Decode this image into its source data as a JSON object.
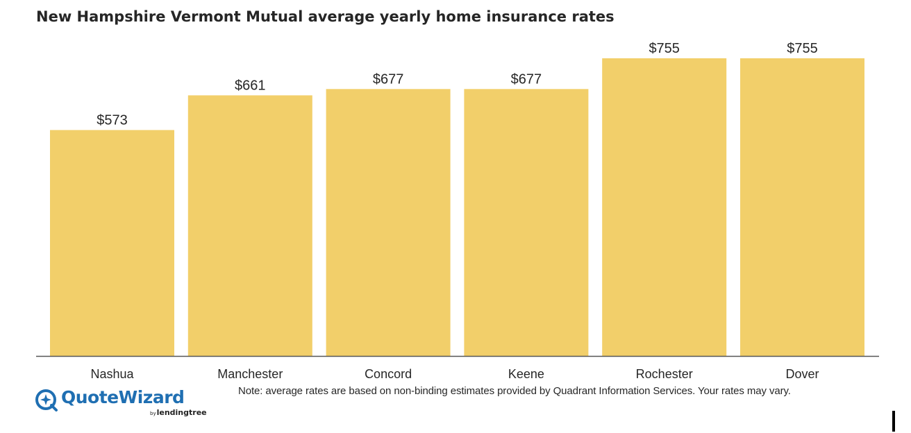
{
  "chart_data": {
    "type": "bar",
    "title": "New Hampshire Vermont Mutual average yearly home insurance rates",
    "categories": [
      "Nashua",
      "Manchester",
      "Concord",
      "Keene",
      "Rochester",
      "Dover"
    ],
    "values": [
      573,
      661,
      677,
      677,
      755,
      755
    ],
    "value_labels": [
      "$573",
      "$661",
      "$677",
      "$677",
      "$755",
      "$755"
    ],
    "xlabel": "",
    "ylabel": "",
    "ylim": [
      0,
      755
    ],
    "grid": false,
    "legend": "none",
    "bar_color": "#f2cf6a",
    "axis_color": "#555555"
  },
  "footnote": "Note: average rates are based on non-binding estimates provided by Quadrant Information Services. Your rates may vary.",
  "brand": {
    "name": "QuoteWizard",
    "by": "by",
    "partner": "lendingtree",
    "primary_color": "#1f6fb2",
    "accent_color": "#5cb85c"
  }
}
